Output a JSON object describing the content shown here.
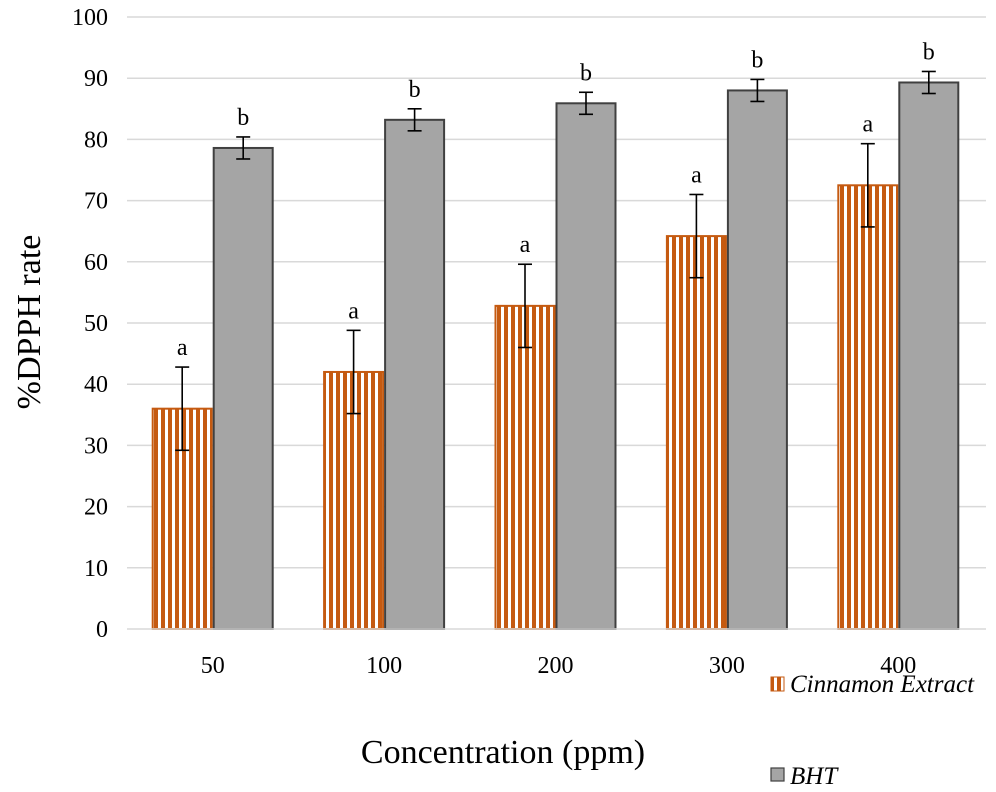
{
  "chart_data": {
    "type": "bar",
    "title": "",
    "xlabel": "Concentration (ppm)",
    "ylabel": "%DPPH rate",
    "categories": [
      "50",
      "100",
      "200",
      "300",
      "400"
    ],
    "ylim": [
      0,
      100
    ],
    "yticks": [
      0,
      10,
      20,
      30,
      40,
      50,
      60,
      70,
      80,
      90,
      100
    ],
    "grid": true,
    "legend_position": "bottom-right",
    "series": [
      {
        "name": "Cinnamon Extract",
        "values": [
          36,
          42,
          52.8,
          64.2,
          72.5
        ],
        "errors": [
          6.8,
          6.8,
          6.8,
          6.8,
          6.8
        ],
        "labels": [
          "a",
          "a",
          "a",
          "a",
          "a"
        ],
        "color": "#C55A11",
        "pattern": "vertical-stripes"
      },
      {
        "name": "BHT",
        "values": [
          78.6,
          83.2,
          85.9,
          88.0,
          89.3
        ],
        "errors": [
          1.8,
          1.8,
          1.8,
          1.8,
          1.8
        ],
        "labels": [
          "b",
          "b",
          "b",
          "b",
          "b"
        ],
        "color": "#A5A5A5",
        "pattern": "solid"
      }
    ]
  },
  "colors": {
    "grid": "#D9D9D9",
    "bht_stroke": "#404040",
    "extract_stroke": "#C55A11"
  }
}
